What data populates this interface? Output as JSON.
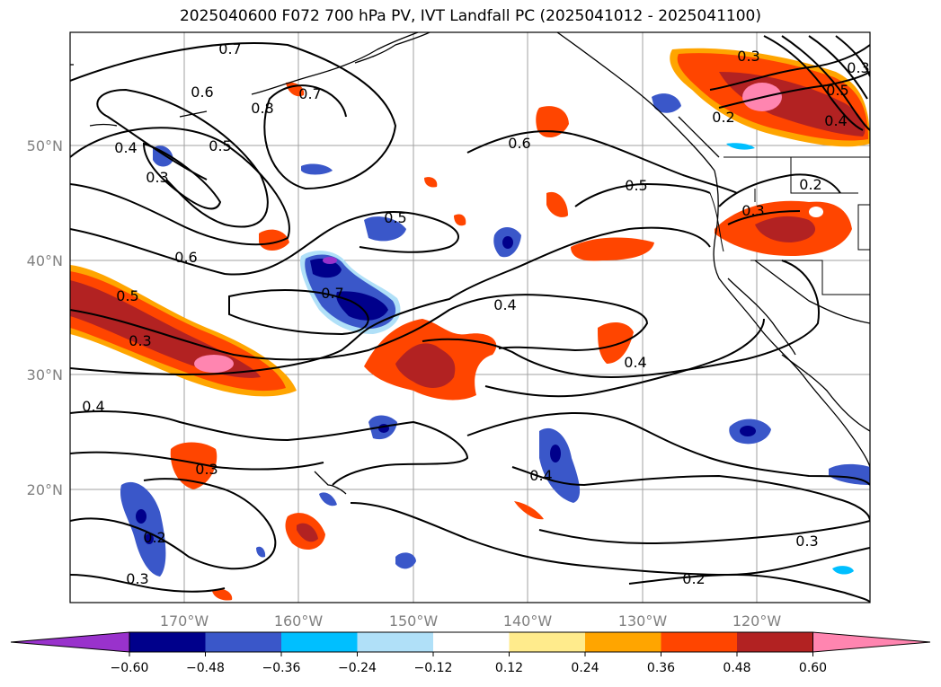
{
  "title": "2025040600 F072 700 hPa PV, IVT Landfall PC (2025041012 - 2025041100)",
  "map": {
    "lat_labels": [
      "50°N",
      "40°N",
      "30°N",
      "20°N"
    ],
    "lon_labels": [
      "170°W",
      "160°W",
      "150°W",
      "140°W",
      "130°W",
      "120°W"
    ],
    "contour_labels": [
      "0.7",
      "0.6",
      "0.8",
      "0.7",
      "0.5",
      "0.4",
      "0.3",
      "0.6",
      "0.5",
      "0.6",
      "0.5",
      "0.7",
      "0.4",
      "0.5",
      "0.3",
      "0.4",
      "0.3",
      "0.4",
      "0.4",
      "0.3",
      "0.2",
      "0.3",
      "0.2",
      "0.3",
      "0.2",
      "0.5",
      "0.4",
      "0.3",
      "0.2",
      "0.3"
    ]
  },
  "colorbar": {
    "colors": [
      "#9932cc",
      "#00008b",
      "#3a57c9",
      "#00bfff",
      "#b0e0f8",
      "#ffffff",
      "#ffeb8c",
      "#ffa500",
      "#ff4500",
      "#b22222",
      "#ff85b0"
    ],
    "ticks": [
      "−0.60",
      "−0.48",
      "−0.36",
      "−0.24",
      "−0.12",
      "0.12",
      "0.24",
      "0.36",
      "0.48",
      "0.60"
    ]
  }
}
